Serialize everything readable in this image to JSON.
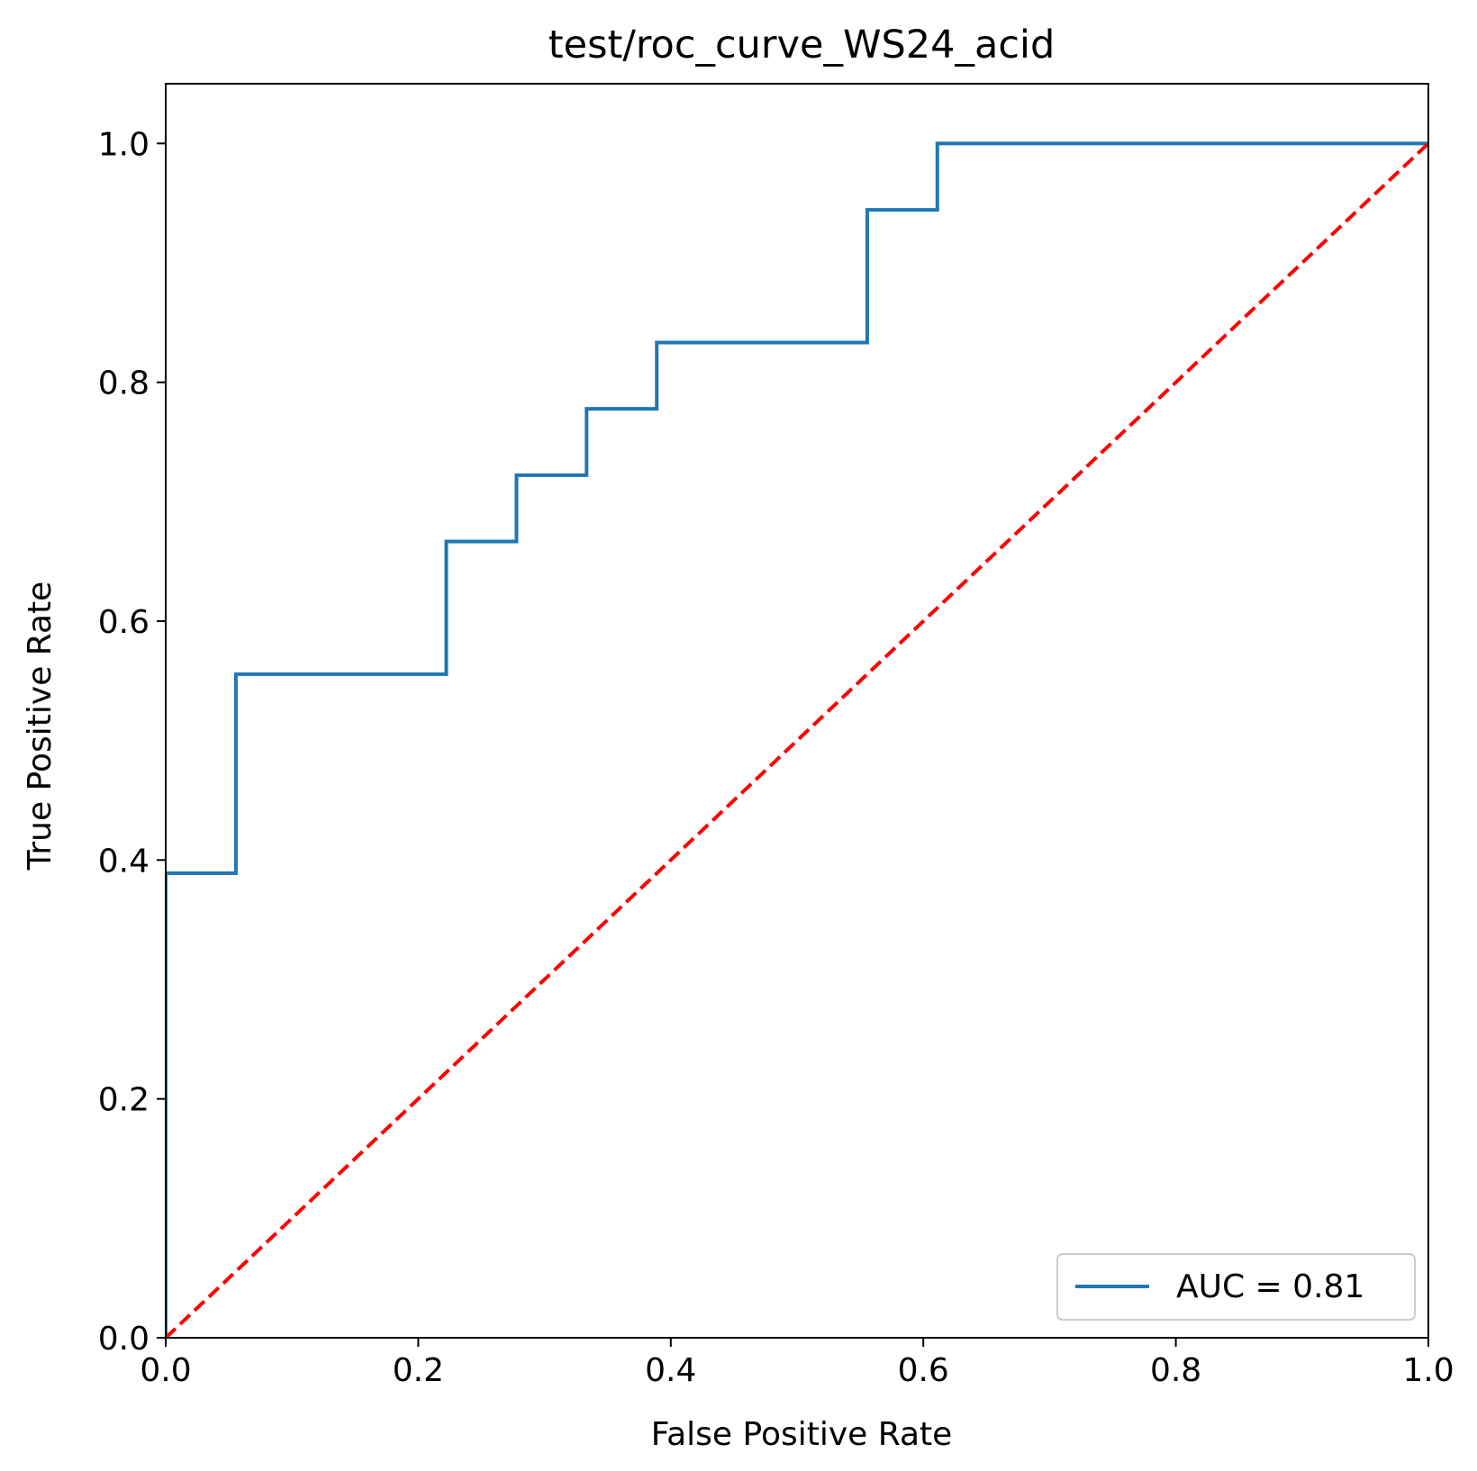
{
  "chart_data": {
    "type": "line",
    "title": "test/roc_curve_WS24_acid",
    "xlabel": "False Positive Rate",
    "ylabel": "True Positive Rate",
    "xlim": [
      0.0,
      1.0
    ],
    "ylim": [
      0.0,
      1.05
    ],
    "x_ticks": [
      0.0,
      0.2,
      0.4,
      0.6,
      0.8,
      1.0
    ],
    "y_ticks": [
      0.0,
      0.2,
      0.4,
      0.6,
      0.8,
      1.0
    ],
    "x_tick_labels": [
      "0.0",
      "0.2",
      "0.4",
      "0.6",
      "0.8",
      "1.0"
    ],
    "y_tick_labels": [
      "0.0",
      "0.2",
      "0.4",
      "0.6",
      "0.8",
      "1.0"
    ],
    "grid": false,
    "legend_position": "lower-right",
    "series": [
      {
        "name": "AUC = 0.81",
        "color": "#1f77b4",
        "style": "solid",
        "x": [
          0.0,
          0.0,
          0.0556,
          0.0556,
          0.2222,
          0.2222,
          0.2778,
          0.2778,
          0.3333,
          0.3333,
          0.3889,
          0.3889,
          0.5556,
          0.5556,
          0.6111,
          0.6111,
          1.0
        ],
        "y": [
          0.0,
          0.3889,
          0.3889,
          0.5556,
          0.5556,
          0.6667,
          0.6667,
          0.7222,
          0.7222,
          0.7778,
          0.7778,
          0.8333,
          0.8333,
          0.9444,
          0.9444,
          1.0,
          1.0
        ]
      },
      {
        "color": "#ff0000",
        "style": "dashed",
        "x": [
          0.0,
          1.0
        ],
        "y": [
          0.0,
          1.0
        ]
      }
    ]
  }
}
